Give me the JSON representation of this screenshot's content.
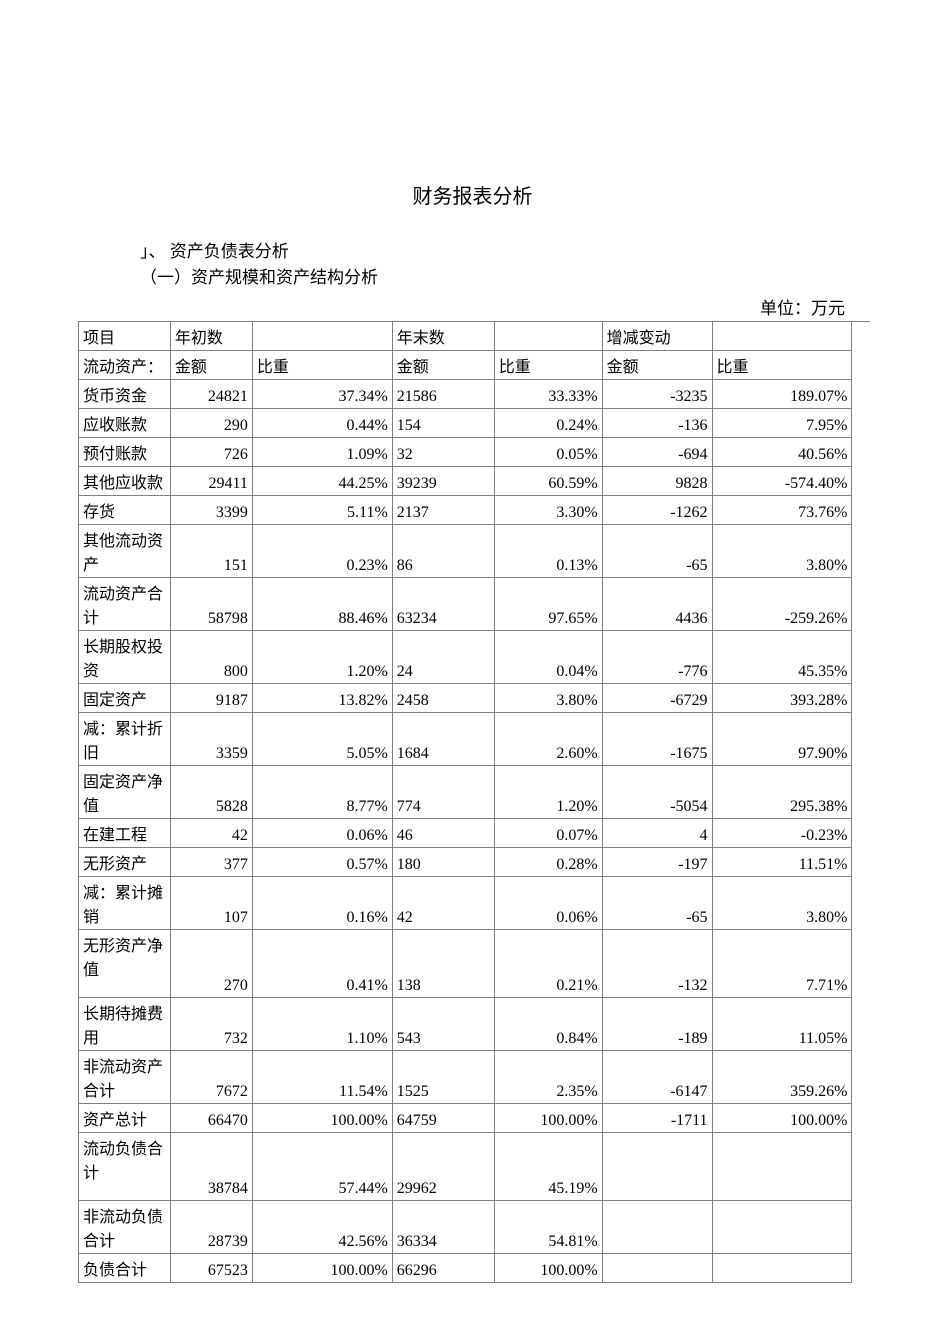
{
  "doc": {
    "title": "财务报表分析",
    "section_marker": "」、  资产负债表分析",
    "subsection": "（一）资产规模和资产结构分析",
    "unit_label": "单位：万元"
  },
  "table": {
    "headers": {
      "r1": {
        "c0": "项目",
        "c1": "年初数",
        "c3": "年末数",
        "c5": "增减变动"
      },
      "r2": {
        "c0": "流动资产：",
        "c1": "金额",
        "c2": "比重",
        "c3": "金额",
        "c4": "比重",
        "c5": "金额",
        "c6": "比重"
      }
    },
    "rows": [
      {
        "label": "货币资金",
        "c1": "24821",
        "c2": "37.34%",
        "c3": "21586",
        "c4": "33.33%",
        "c5": "-3235",
        "c6": "189.07%"
      },
      {
        "label": "应收账款",
        "c1": "290",
        "c2": "0.44%",
        "c3": "154",
        "c4": "0.24%",
        "c5": "-136",
        "c6": "7.95%"
      },
      {
        "label": "预付账款",
        "c1": "726",
        "c2": "1.09%",
        "c3": "32",
        "c4": "0.05%",
        "c5": "-694",
        "c6": "40.56%"
      },
      {
        "label": "其他应收款",
        "c1": "29411",
        "c2": "44.25%",
        "c3": "39239",
        "c4": "60.59%",
        "c5": "9828",
        "c6": "-574.40%"
      },
      {
        "label": "存货",
        "c1": "3399",
        "c2": "5.11%",
        "c3": "2137",
        "c4": "3.30%",
        "c5": "-1262",
        "c6": "73.76%"
      },
      {
        "label": "其他流动资 产",
        "c1": "151",
        "c2": "0.23%",
        "c3": "86",
        "c4": "0.13%",
        "c5": "-65",
        "c6": "3.80%",
        "tall": true
      },
      {
        "label": "流动资产合 计",
        "c1": "58798",
        "c2": "88.46%",
        "c3": "63234",
        "c4": "97.65%",
        "c5": "4436",
        "c6": "-259.26%",
        "tall": true
      },
      {
        "label": "长期股权投 资",
        "c1": "800",
        "c2": "1.20%",
        "c3": "24",
        "c4": "0.04%",
        "c5": "-776",
        "c6": "45.35%",
        "tall": true
      },
      {
        "label": "固定资产",
        "c1": "9187",
        "c2": "13.82%",
        "c3": "2458",
        "c4": "3.80%",
        "c5": "-6729",
        "c6": "393.28%"
      },
      {
        "label": "减：累计折 旧",
        "c1": "3359",
        "c2": "5.05%",
        "c3": "1684",
        "c4": "2.60%",
        "c5": "-1675",
        "c6": "97.90%",
        "tall": true
      },
      {
        "label": "固定资产净 值",
        "c1": "5828",
        "c2": "8.77%",
        "c3": "774",
        "c4": "1.20%",
        "c5": "-5054",
        "c6": "295.38%",
        "tall": true
      },
      {
        "label": "在建工程",
        "c1": "42",
        "c2": "0.06%",
        "c3": "46",
        "c4": "0.07%",
        "c5": "4",
        "c6": "-0.23%"
      },
      {
        "label": "无形资产",
        "c1": "377",
        "c2": "0.57%",
        "c3": "180",
        "c4": "0.28%",
        "c5": "-197",
        "c6": "11.51%"
      },
      {
        "label": "减：累计摊 销",
        "c1": "107",
        "c2": "0.16%",
        "c3": "42",
        "c4": "0.06%",
        "c5": "-65",
        "c6": "3.80%",
        "tall": true
      },
      {
        "label": "无形资产净 值",
        "c1": "270",
        "c2": "0.41%",
        "c3": "138",
        "c4": "0.21%",
        "c5": "-132",
        "c6": "7.71%",
        "taller": true
      },
      {
        "label": "长期待摊费 用",
        "c1": "732",
        "c2": "1.10%",
        "c3": "543",
        "c4": "0.84%",
        "c5": "-189",
        "c6": "11.05%",
        "tall": true
      },
      {
        "label": "非流动资产 合计",
        "c1": "7672",
        "c2": "11.54%",
        "c3": "1525",
        "c4": "2.35%",
        "c5": "-6147",
        "c6": "359.26%",
        "tall": true
      },
      {
        "label": "资产总计",
        "c1": "66470",
        "c2": "100.00%",
        "c3": "64759",
        "c4": "100.00%",
        "c5": "-1711",
        "c6": "100.00%"
      },
      {
        "label": "流动负债合 计",
        "c1": "38784",
        "c2": "57.44%",
        "c3": "29962",
        "c4": "45.19%",
        "c5": "",
        "c6": "",
        "taller": true
      },
      {
        "label": "非流动负债合计",
        "c1": "28739",
        "c2": "42.56%",
        "c3": "36334",
        "c4": "54.81%",
        "c5": "",
        "c6": "",
        "tall": true
      },
      {
        "label": "负债合计",
        "c1": "67523",
        "c2": "100.00%",
        "c3": "66296",
        "c4": "100.00%",
        "c5": "",
        "c6": ""
      }
    ],
    "colors": {
      "border": "#808080",
      "text": "#000000",
      "background": "#ffffff"
    },
    "fontsize_pt": 12
  }
}
